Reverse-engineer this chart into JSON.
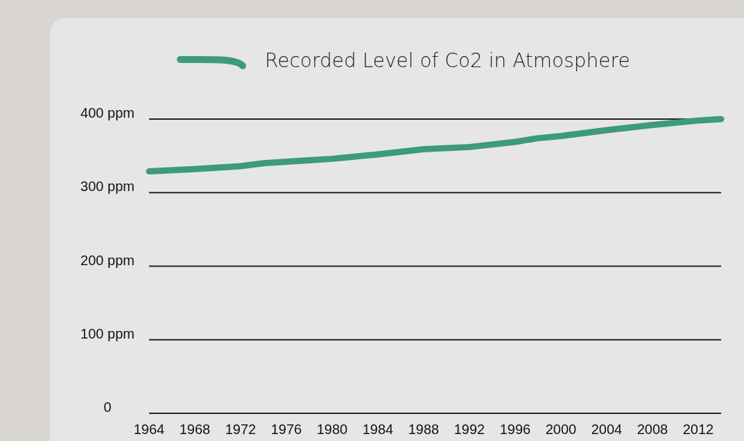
{
  "chart_data": {
    "type": "line",
    "x": [
      1964,
      1968,
      1972,
      1974,
      1978,
      1980,
      1984,
      1988,
      1992,
      1996,
      1998,
      2000,
      2004,
      2008,
      2012,
      2014
    ],
    "series": [
      {
        "name": "Recorded Level of Co2 in Atmosphere",
        "color": "#3d9a7e",
        "values": [
          329,
          332,
          336,
          340,
          344,
          346,
          352,
          359,
          362,
          369,
          374,
          377,
          385,
          392,
          398,
          400
        ]
      }
    ],
    "xlim": [
      1964,
      2014
    ],
    "xticks": [
      1964,
      1968,
      1972,
      1976,
      1980,
      1984,
      1988,
      1992,
      1996,
      2000,
      2004,
      2008,
      2012
    ],
    "ylim": [
      0,
      400
    ],
    "yticks": [
      0,
      {
        "value": 100,
        "label": "100 ppm"
      },
      {
        "value": 200,
        "label": "200 ppm"
      },
      {
        "value": 300,
        "label": "300 ppm"
      },
      {
        "value": 400,
        "label": "400 ppm"
      }
    ],
    "grid": "y",
    "legend": "top",
    "marker": "none",
    "line_style": "solid"
  }
}
